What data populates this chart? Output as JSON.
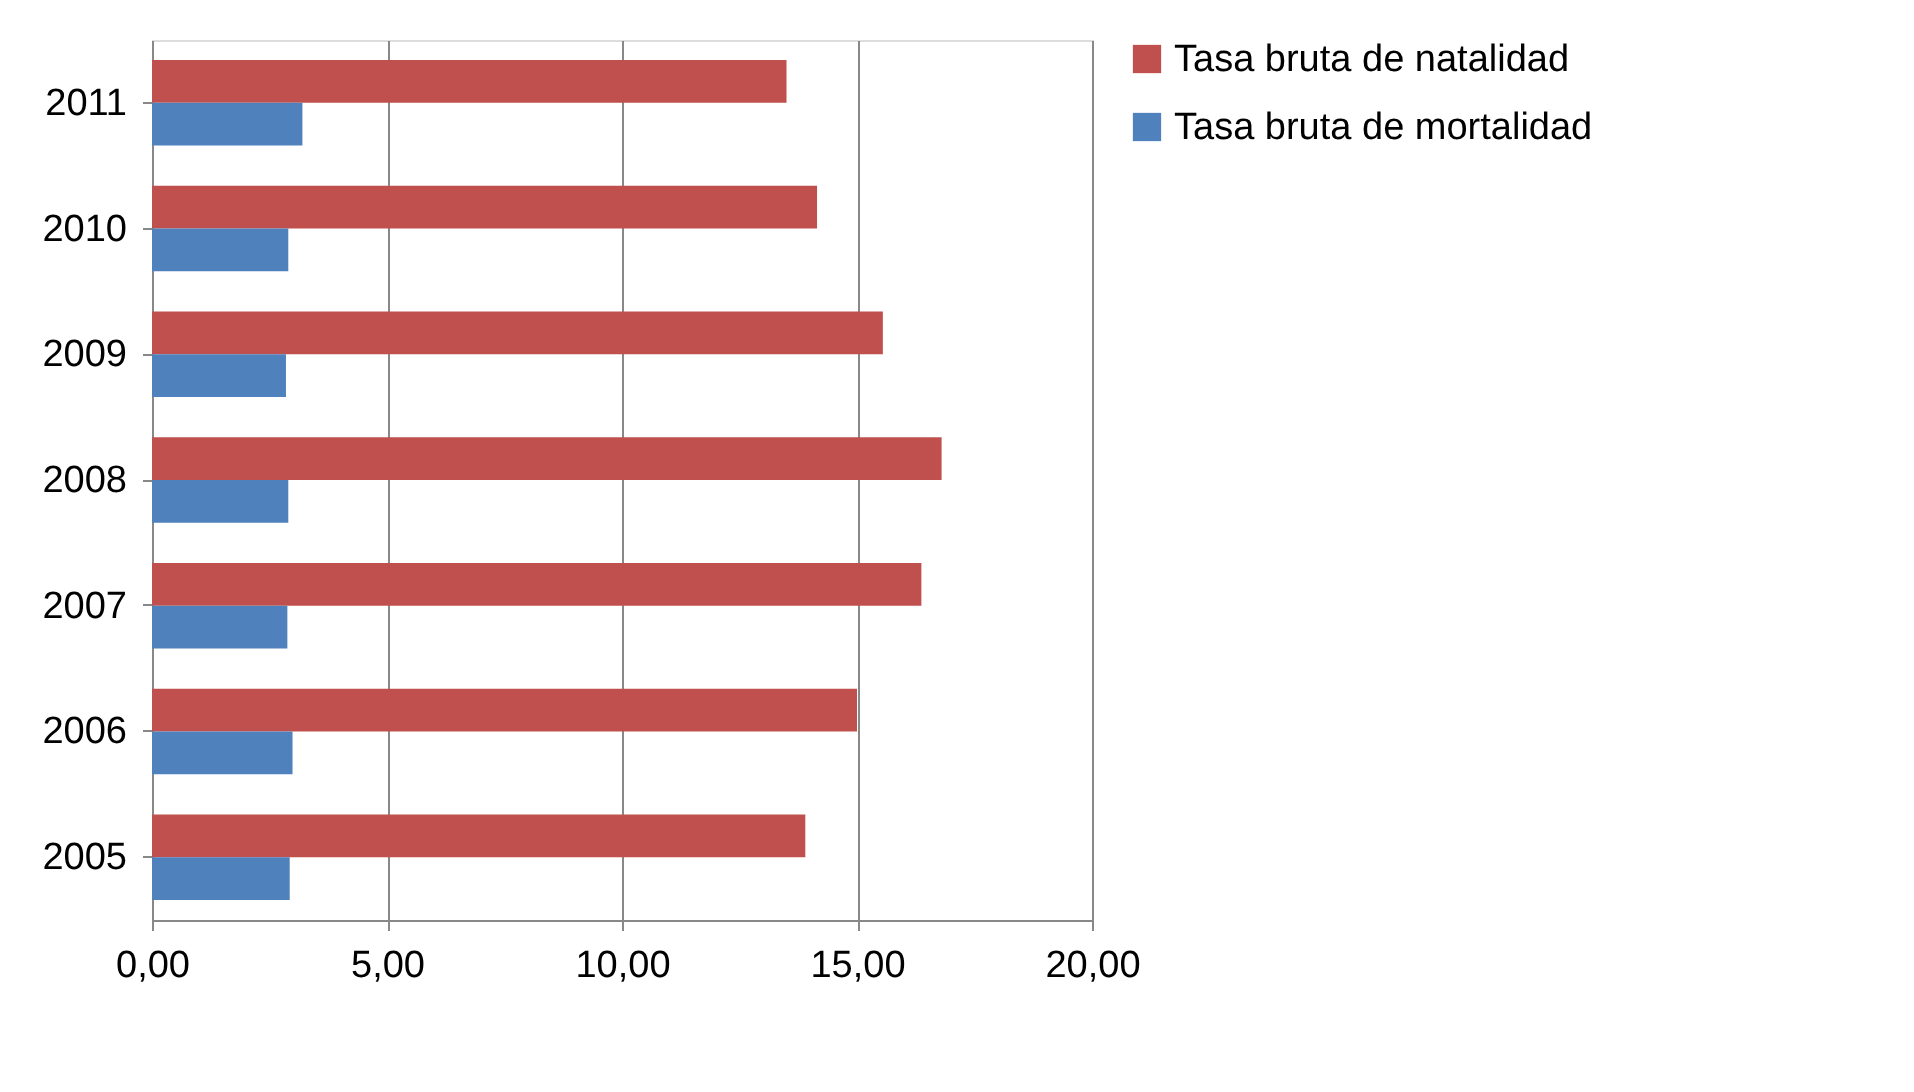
{
  "chart_data": {
    "type": "bar",
    "orientation": "horizontal",
    "categories": [
      "2011",
      "2010",
      "2009",
      "2008",
      "2007",
      "2006",
      "2005"
    ],
    "series": [
      {
        "name": "Tasa bruta de natalidad",
        "color": "#c0504d",
        "values": [
          13.5,
          14.15,
          15.55,
          16.8,
          16.37,
          15.0,
          13.9
        ]
      },
      {
        "name": "Tasa bruta de mortalidad",
        "color": "#4f81bd",
        "values": [
          3.2,
          2.9,
          2.85,
          2.9,
          2.88,
          2.99,
          2.93
        ]
      }
    ],
    "xlim": [
      0,
      20
    ],
    "xticks": [
      {
        "value": 0,
        "label": "0,00"
      },
      {
        "value": 5,
        "label": "5,00"
      },
      {
        "value": 10,
        "label": "10,00"
      },
      {
        "value": 15,
        "label": "15,00"
      },
      {
        "value": 20,
        "label": "20,00"
      }
    ],
    "grid": "x",
    "legend": "right"
  }
}
